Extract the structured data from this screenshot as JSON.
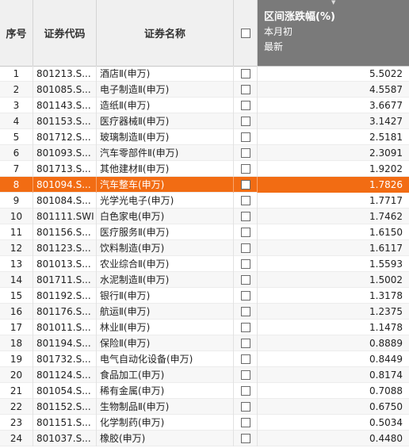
{
  "header": {
    "seq": "序号",
    "code": "证券代码",
    "name": "证券名称",
    "change_line1": "区间涨跌幅(%)",
    "change_line2": "本月初",
    "change_line3": "最新"
  },
  "selected_row": 8,
  "colors": {
    "selected": "#f26c13",
    "header_dark": "#7a7a7a"
  },
  "rows": [
    {
      "seq": "1",
      "code": "801213.S...",
      "name": "酒店Ⅱ(申万)",
      "value": "5.5022"
    },
    {
      "seq": "2",
      "code": "801085.S...",
      "name": "电子制造Ⅱ(申万)",
      "value": "4.5587"
    },
    {
      "seq": "3",
      "code": "801143.S...",
      "name": "造纸Ⅱ(申万)",
      "value": "3.6677"
    },
    {
      "seq": "4",
      "code": "801153.S...",
      "name": "医疗器械Ⅱ(申万)",
      "value": "3.1427"
    },
    {
      "seq": "5",
      "code": "801712.S...",
      "name": "玻璃制造Ⅱ(申万)",
      "value": "2.5181"
    },
    {
      "seq": "6",
      "code": "801093.S...",
      "name": "汽车零部件Ⅱ(申万)",
      "value": "2.3091"
    },
    {
      "seq": "7",
      "code": "801713.S...",
      "name": "其他建材Ⅱ(申万)",
      "value": "1.9202"
    },
    {
      "seq": "8",
      "code": "801094.S...",
      "name": "汽车整车(申万)",
      "value": "1.7826"
    },
    {
      "seq": "9",
      "code": "801084.S...",
      "name": "光学光电子(申万)",
      "value": "1.7717"
    },
    {
      "seq": "10",
      "code": "801111.SWI",
      "name": "白色家电(申万)",
      "value": "1.7462"
    },
    {
      "seq": "11",
      "code": "801156.S...",
      "name": "医疗服务Ⅱ(申万)",
      "value": "1.6150"
    },
    {
      "seq": "12",
      "code": "801123.S...",
      "name": "饮料制造(申万)",
      "value": "1.6117"
    },
    {
      "seq": "13",
      "code": "801013.S...",
      "name": "农业综合Ⅱ(申万)",
      "value": "1.5593"
    },
    {
      "seq": "14",
      "code": "801711.S...",
      "name": "水泥制造Ⅱ(申万)",
      "value": "1.5002"
    },
    {
      "seq": "15",
      "code": "801192.S...",
      "name": "银行Ⅱ(申万)",
      "value": "1.3178"
    },
    {
      "seq": "16",
      "code": "801176.S...",
      "name": "航运Ⅱ(申万)",
      "value": "1.2375"
    },
    {
      "seq": "17",
      "code": "801011.S...",
      "name": "林业Ⅱ(申万)",
      "value": "1.1478"
    },
    {
      "seq": "18",
      "code": "801194.S...",
      "name": "保险Ⅱ(申万)",
      "value": "0.8889"
    },
    {
      "seq": "19",
      "code": "801732.S...",
      "name": "电气自动化设备(申万)",
      "value": "0.8449"
    },
    {
      "seq": "20",
      "code": "801124.S...",
      "name": "食品加工(申万)",
      "value": "0.8174"
    },
    {
      "seq": "21",
      "code": "801054.S...",
      "name": "稀有金属(申万)",
      "value": "0.7088"
    },
    {
      "seq": "22",
      "code": "801152.S...",
      "name": "生物制品Ⅱ(申万)",
      "value": "0.6750"
    },
    {
      "seq": "23",
      "code": "801151.S...",
      "name": "化学制药(申万)",
      "value": "0.5034"
    },
    {
      "seq": "24",
      "code": "801037.S...",
      "name": "橡胶(申万)",
      "value": "0.4480"
    }
  ]
}
